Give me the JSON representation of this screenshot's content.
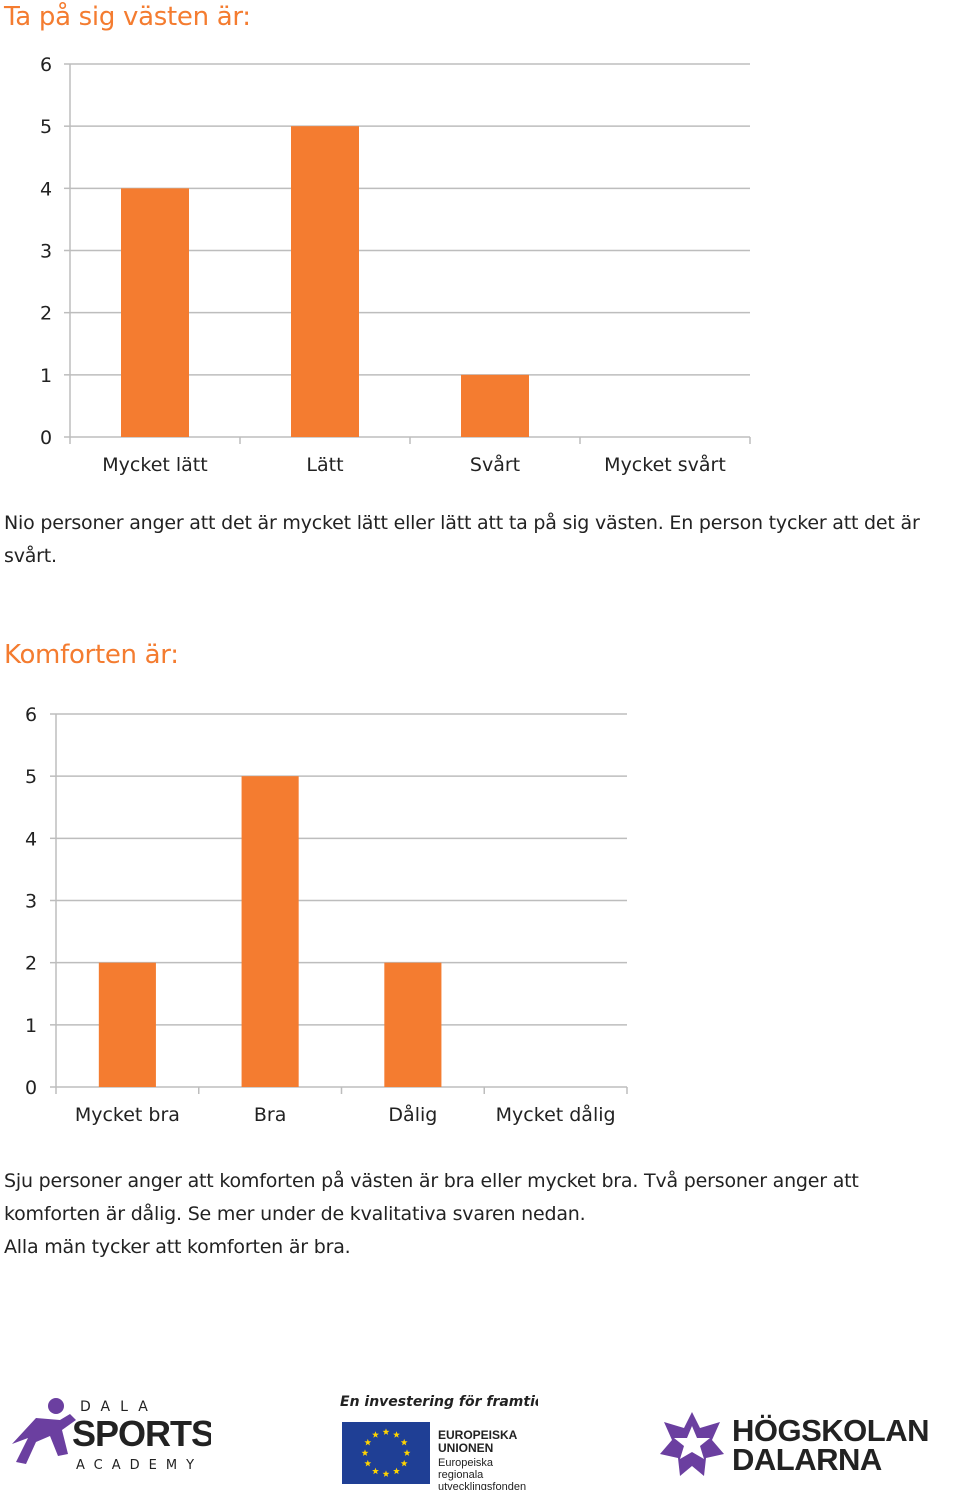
{
  "chart_data": [
    {
      "type": "bar",
      "title": "Ta på sig västen är:",
      "categories": [
        "Mycket lätt",
        "Lätt",
        "Svårt",
        "Mycket svårt"
      ],
      "values": [
        4,
        5,
        1,
        0
      ],
      "ylim": [
        0,
        6
      ],
      "yticks": [
        "0",
        "1",
        "2",
        "3",
        "4",
        "5",
        "6"
      ],
      "grid": true,
      "legend": "none",
      "bar_color": "#f47c30"
    },
    {
      "type": "bar",
      "title": "Komforten är:",
      "categories": [
        "Mycket bra",
        "Bra",
        "Dålig",
        "Mycket dålig"
      ],
      "values": [
        2,
        5,
        2,
        0
      ],
      "ylim": [
        0,
        6
      ],
      "yticks": [
        "0",
        "1",
        "2",
        "3",
        "4",
        "5",
        "6"
      ],
      "grid": true,
      "legend": "none",
      "bar_color": "#f47c30"
    }
  ],
  "text": {
    "para1": "Nio personer anger att det är mycket lätt eller lätt att ta på sig västen. En person tycker att det är svårt.",
    "para2_line1": "Sju personer anger att komforten på västen är bra eller mycket bra.  Två personer anger att",
    "para2_line2": "komforten är dålig. Se mer under de kvalitativa svaren nedan.",
    "para2_line3": "Alla män tycker att komforten är bra."
  },
  "logos": {
    "dala_top": "DALA",
    "dala_main": "SPORTS",
    "dala_bottom": "ACADEMY",
    "eu_tagline": "En investering för framtiden",
    "eu_line1": "EUROPEISKA",
    "eu_line2": "UNIONEN",
    "eu_line3": "Europeiska",
    "eu_line4": "regionala",
    "eu_line5": "utvecklingsfonden",
    "hd_line1": "HÖGSKOLAN",
    "hd_line2": "DALARNA"
  }
}
